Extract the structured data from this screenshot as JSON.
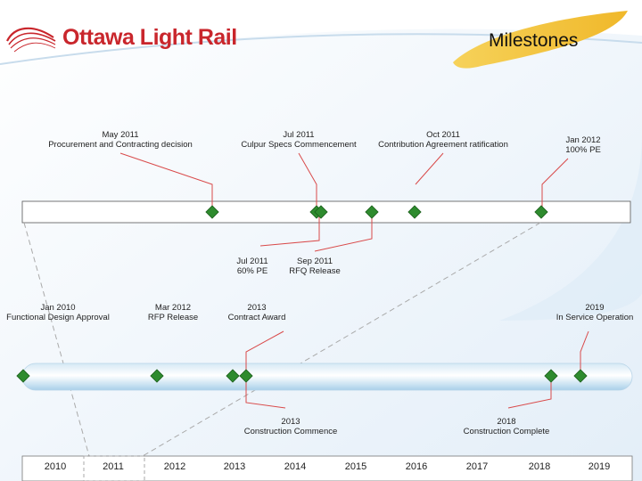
{
  "header": {
    "logo_text": "Ottawa Light Rail",
    "title": "Milestones"
  },
  "colors": {
    "brand_red": "#c9262c",
    "milestone_green": "#2e8b2e",
    "accent_gold": "#f2c43c",
    "leader_red": "#d94a4a"
  },
  "detail_timeline": {
    "above": [
      {
        "date": "May 2011",
        "text": "Procurement and Contracting decision"
      },
      {
        "date": "Jul 2011",
        "text": "Culpur Specs Commencement"
      },
      {
        "date": "Oct 2011",
        "text": "Contribution Agreement ratification"
      },
      {
        "date": "Jan 2012",
        "text": "100% PE"
      }
    ],
    "below": [
      {
        "date": "Jul 2011",
        "text": "60% PE"
      },
      {
        "date": "Sep 2011",
        "text": "RFQ Release"
      }
    ]
  },
  "main_timeline": {
    "above": [
      {
        "date": "Jan 2010",
        "text": "Functional Design Approval"
      },
      {
        "date": "Mar 2012",
        "text": "RFP Release"
      },
      {
        "date": "2013",
        "text": "Contract Award"
      },
      {
        "date": "2019",
        "text": "In Service Operation"
      }
    ],
    "below": [
      {
        "date": "2013",
        "text": "Construction Commence"
      },
      {
        "date": "2018",
        "text": "Construction Complete"
      }
    ]
  },
  "years": [
    "2010",
    "2011",
    "2012",
    "2013",
    "2014",
    "2015",
    "2016",
    "2017",
    "2018",
    "2019"
  ]
}
